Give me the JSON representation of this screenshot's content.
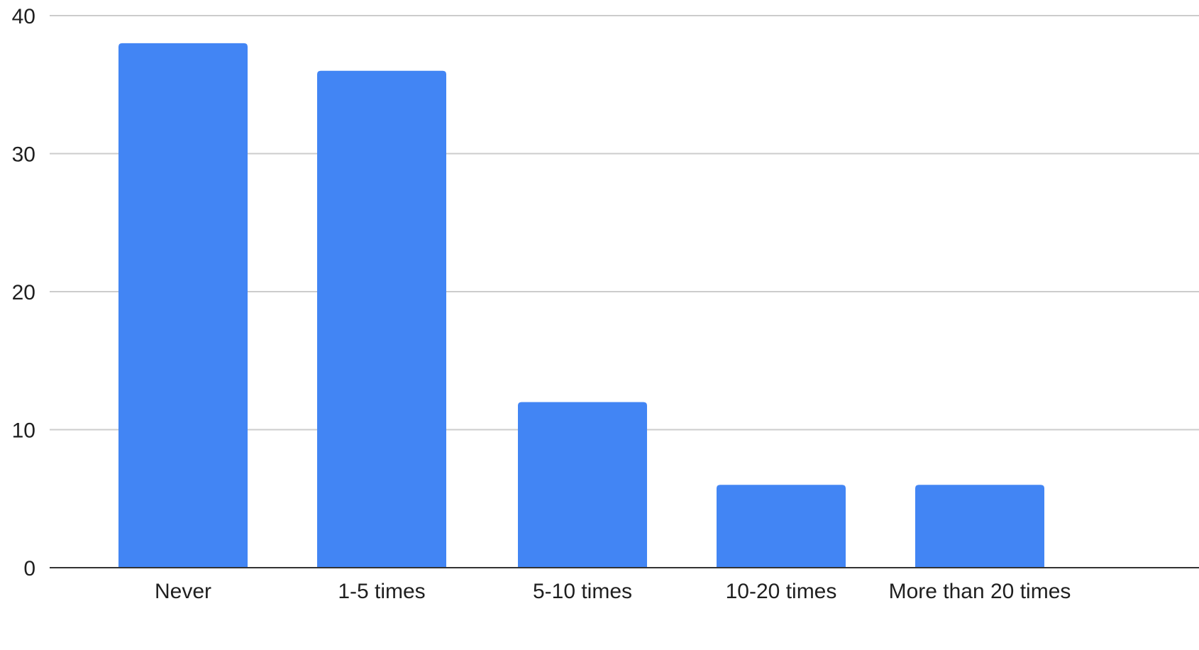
{
  "chart_data": {
    "type": "bar",
    "categories": [
      "Never",
      "1-5 times",
      "5-10 times",
      "10-20 times",
      "More than 20 times"
    ],
    "series": [
      {
        "values": [
          38,
          36,
          12,
          6,
          6
        ]
      }
    ],
    "title": "",
    "xlabel": "",
    "ylabel": "",
    "ylim": [
      0,
      40
    ],
    "yticks": [
      0,
      10,
      20,
      30,
      40
    ],
    "grid": true,
    "legend": "none",
    "colors": {
      "bar": "#4285f4",
      "grid": "#cccccc",
      "baseline": "#333333"
    }
  }
}
